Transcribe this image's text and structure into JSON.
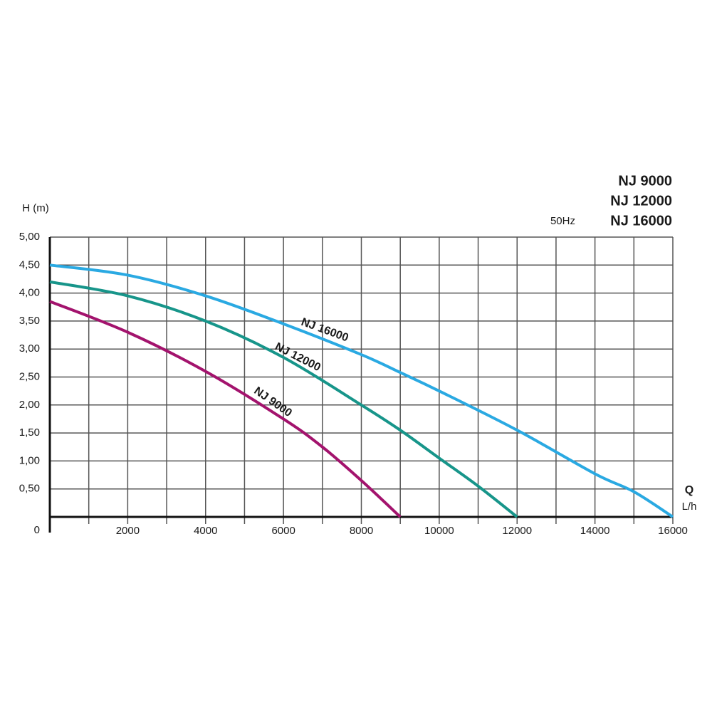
{
  "chart_data": {
    "type": "line",
    "y_label": "H (m)",
    "x_label": "Q",
    "x_unit": "L/h",
    "frequency": "50Hz",
    "xlim": [
      0,
      16000
    ],
    "ylim": [
      0,
      5
    ],
    "xticks": [
      2000,
      4000,
      6000,
      8000,
      10000,
      12000,
      14000,
      16000
    ],
    "xminorticks": [
      1000,
      3000,
      5000,
      7000,
      9000,
      11000,
      13000,
      15000
    ],
    "yticks": [
      0,
      {
        "value": 0.5,
        "label": "0,50"
      },
      {
        "value": 1,
        "label": "1,00"
      },
      {
        "value": 1.5,
        "label": "1,50"
      },
      {
        "value": 2,
        "label": "2,00"
      },
      {
        "value": 2.5,
        "label": "2,50"
      },
      {
        "value": 3,
        "label": "3,00"
      },
      {
        "value": 3.5,
        "label": "3,50"
      },
      {
        "value": 4,
        "label": "4,00"
      },
      {
        "value": 4.5,
        "label": "4,50"
      },
      {
        "value": 5,
        "label": "5,00"
      }
    ],
    "grid": true,
    "series": [
      {
        "name": "NJ 9000",
        "color": "#a3136d",
        "x": [
          0,
          2000,
          4000,
          6000,
          7000,
          8000,
          9000
        ],
        "values": [
          3.85,
          3.3,
          2.6,
          1.75,
          1.25,
          0.65,
          0
        ]
      },
      {
        "name": "NJ 12000",
        "color": "#17958a",
        "x": [
          0,
          2000,
          4000,
          6000,
          8000,
          9000,
          10000,
          11000,
          12000
        ],
        "values": [
          4.2,
          3.95,
          3.5,
          2.85,
          2.0,
          1.55,
          1.05,
          0.55,
          0
        ]
      },
      {
        "name": "NJ 16000",
        "color": "#2aa9e2",
        "x": [
          0,
          2000,
          4000,
          6000,
          8000,
          9000,
          10000,
          12000,
          14000,
          15000,
          16000
        ],
        "values": [
          4.5,
          4.32,
          3.95,
          3.45,
          2.9,
          2.58,
          2.25,
          1.55,
          0.77,
          0.45,
          0
        ]
      }
    ]
  }
}
